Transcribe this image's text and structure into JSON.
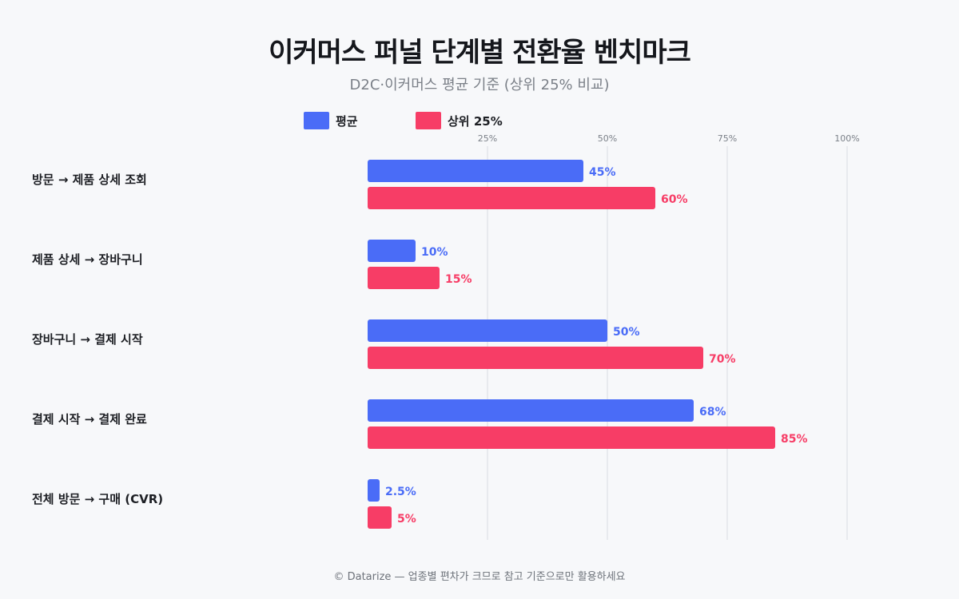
{
  "chart_data": {
    "type": "bar",
    "orientation": "horizontal",
    "title": "이커머스 퍼널 단계별 전환율 벤치마크",
    "subtitle": "D2C·이커머스 평균 기준 (상위 25% 비교)",
    "categories": [
      "방문 → 제품 상세 조회",
      "제품 상세 → 장바구니",
      "장바구니 → 결제 시작",
      "결제 시작 → 결제 완료",
      "전체 방문 → 구매 (CVR)"
    ],
    "series": [
      {
        "name": "평균",
        "color": "#4a6cf7",
        "values": [
          45,
          10,
          50,
          68,
          2.5
        ],
        "labels": [
          "45%",
          "10%",
          "50%",
          "68%",
          "2.5%"
        ]
      },
      {
        "name": "상위 25%",
        "color": "#f73d66",
        "values": [
          60,
          15,
          70,
          85,
          5
        ],
        "labels": [
          "60%",
          "15%",
          "70%",
          "85%",
          "5%"
        ]
      }
    ],
    "xlim": [
      0,
      100
    ],
    "xticks": [
      25,
      50,
      75,
      100
    ],
    "xtick_labels": [
      "25%",
      "50%",
      "75%",
      "100%"
    ],
    "grid": true,
    "legend_position": "top"
  },
  "footer": "© Datarize — 업종별 편차가 크므로 참고 기준으로만 활용하세요"
}
